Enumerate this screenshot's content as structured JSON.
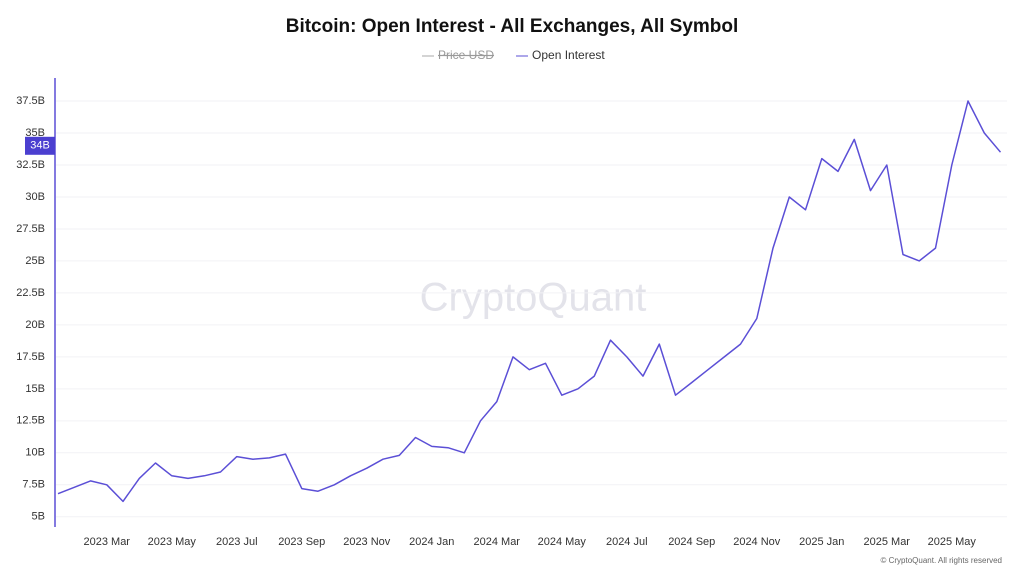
{
  "chart_data": {
    "type": "line",
    "title": "Bitcoin: Open Interest - All Exchanges, All Symbol",
    "watermark": "CryptoQuant",
    "footer": "© CryptoQuant. All rights reserved",
    "legend": [
      {
        "name": "Price USD",
        "color": "#aaaaaa",
        "hidden": true
      }
    ],
    "categories": [
      null,
      null,
      null,
      "2023 Mar",
      null,
      null,
      null,
      "2023 May",
      null,
      null,
      null,
      "2023 Jul",
      null,
      null,
      null,
      "2023 Sep",
      null,
      null,
      null,
      "2023 Nov",
      null,
      null,
      null,
      "2024 Jan",
      null,
      null,
      null,
      "2024 Mar",
      null,
      null,
      null,
      "2024 May",
      null,
      null,
      null,
      "2024 Jul",
      null,
      null,
      null,
      "2024 Sep",
      null,
      null,
      null,
      "2024 Nov",
      null,
      null,
      null,
      "2025 Jan",
      null,
      null,
      null,
      "2025 Mar",
      null,
      null,
      null,
      "2025 May",
      null,
      null,
      null
    ],
    "series": [
      {
        "name": "Open Interest",
        "color": "#5b4fd6",
        "values": [
          6.8,
          7.3,
          7.8,
          7.5,
          6.2,
          8.0,
          9.2,
          8.2,
          8.0,
          8.2,
          8.5,
          9.7,
          9.5,
          9.6,
          9.9,
          7.2,
          7.0,
          7.5,
          8.2,
          8.8,
          9.5,
          9.8,
          11.2,
          10.5,
          10.4,
          10.0,
          12.5,
          14.0,
          17.5,
          16.5,
          17.0,
          14.5,
          15.0,
          16.0,
          18.8,
          17.5,
          16.0,
          18.5,
          14.5,
          15.5,
          16.5,
          17.5,
          18.5,
          20.5,
          26.0,
          30.0,
          29.0,
          33.0,
          32.0,
          34.5,
          30.5,
          32.5,
          25.5,
          25.0,
          26.0,
          32.5,
          37.5,
          35.0,
          33.5
        ]
      }
    ],
    "current_marker": {
      "value": 34,
      "label": "34B"
    },
    "ylim": [
      4.2,
      39.3
    ],
    "yticks": [
      {
        "value": 5,
        "label": "5B"
      },
      {
        "value": 7.5,
        "label": "7.5B"
      },
      {
        "value": 10,
        "label": "10B"
      },
      {
        "value": 12.5,
        "label": "12.5B"
      },
      {
        "value": 15,
        "label": "15B"
      },
      {
        "value": 17.5,
        "label": "17.5B"
      },
      {
        "value": 20,
        "label": "20B"
      },
      {
        "value": 22.5,
        "label": "22.5B"
      },
      {
        "value": 25,
        "label": "25B"
      },
      {
        "value": 27.5,
        "label": "27.5B"
      },
      {
        "value": 30,
        "label": "30B"
      },
      {
        "value": 32.5,
        "label": "32.5B"
      },
      {
        "value": 35,
        "label": "35B"
      },
      {
        "value": 37.5,
        "label": "37.5B"
      }
    ],
    "grid": true
  }
}
